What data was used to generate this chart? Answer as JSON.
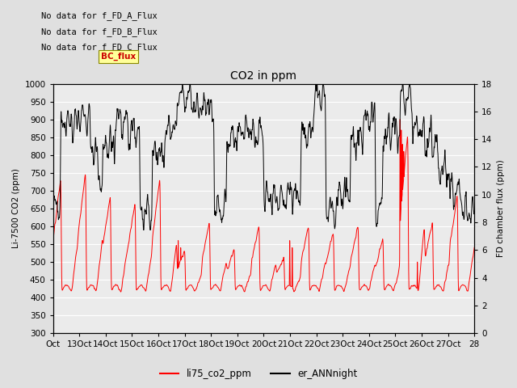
{
  "title": "CO2 in ppm",
  "ylabel_left": "Li-7500 CO2 (ppm)",
  "ylabel_right": "FD chamber flux (ppm)",
  "ylim_left": [
    300,
    1000
  ],
  "ylim_right": [
    0,
    18
  ],
  "yticks_left": [
    300,
    350,
    400,
    450,
    500,
    550,
    600,
    650,
    700,
    750,
    800,
    850,
    900,
    950,
    1000
  ],
  "yticks_right": [
    0,
    2,
    4,
    6,
    8,
    10,
    12,
    14,
    16,
    18
  ],
  "xtick_labels": [
    "Oct",
    "13Oct",
    "14Oct",
    "15Oct",
    "16Oct",
    "17Oct",
    "18Oct",
    "19Oct",
    "20Oct",
    "21Oct",
    "22Oct",
    "23Oct",
    "24Oct",
    "25Oct",
    "26Oct",
    "27Oct",
    "28"
  ],
  "annotations": [
    "No data for f_FD_A_Flux",
    "No data for f_FD_B_Flux",
    "No data for f_FD_C_Flux"
  ],
  "legend_box_label": "BC_flux",
  "legend_box_color": "#FFFF99",
  "legend_box_text_color": "#CC0000",
  "legend_entries": [
    "li75_co2_ppm",
    "er_ANNnight"
  ],
  "line_colors": [
    "#FF0000",
    "#000000"
  ],
  "bg_color": "#E0E0E0",
  "plot_bg_color": "#EBEBEB",
  "grid_color": "#FFFFFF",
  "annotation_fontsize": 7.5,
  "tick_fontsize": 7.5,
  "title_fontsize": 10,
  "legend_fontsize": 8.5
}
